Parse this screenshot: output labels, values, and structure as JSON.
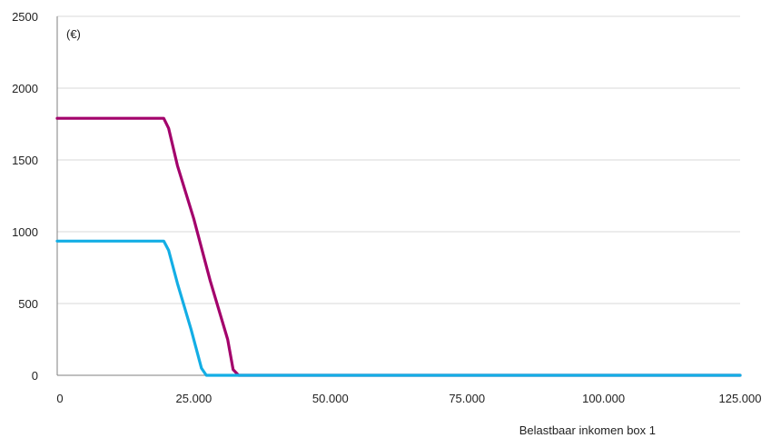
{
  "chart_data": {
    "type": "line",
    "title": "",
    "unit_label": "(€)",
    "xlabel": "Belastbaar inkomen box 1",
    "ylabel": "",
    "xlim": [
      0,
      125000
    ],
    "ylim": [
      0,
      2500
    ],
    "x_ticks": [
      0,
      25000,
      50000,
      75000,
      100000,
      125000
    ],
    "x_tick_labels": [
      "0",
      "25.000",
      "50.000",
      "75.000",
      "100.000",
      "125.000"
    ],
    "y_ticks": [
      0,
      500,
      1000,
      1500,
      2000,
      2500
    ],
    "y_tick_labels": [
      "0",
      "500",
      "1000",
      "1500",
      "2000",
      "2500"
    ],
    "grid": "horizontal",
    "series": [
      {
        "color": "#a3006b",
        "x": [
          0,
          19500,
          20400,
          22000,
          25000,
          28000,
          31200,
          32200,
          33200,
          125000
        ],
        "y": [
          1790,
          1790,
          1720,
          1460,
          1090,
          660,
          250,
          40,
          0,
          0
        ]
      },
      {
        "color": "#13aee5",
        "x": [
          0,
          19500,
          20400,
          22000,
          24500,
          26400,
          27300,
          125000
        ],
        "y": [
          935,
          935,
          870,
          640,
          320,
          50,
          0,
          0
        ]
      }
    ]
  }
}
